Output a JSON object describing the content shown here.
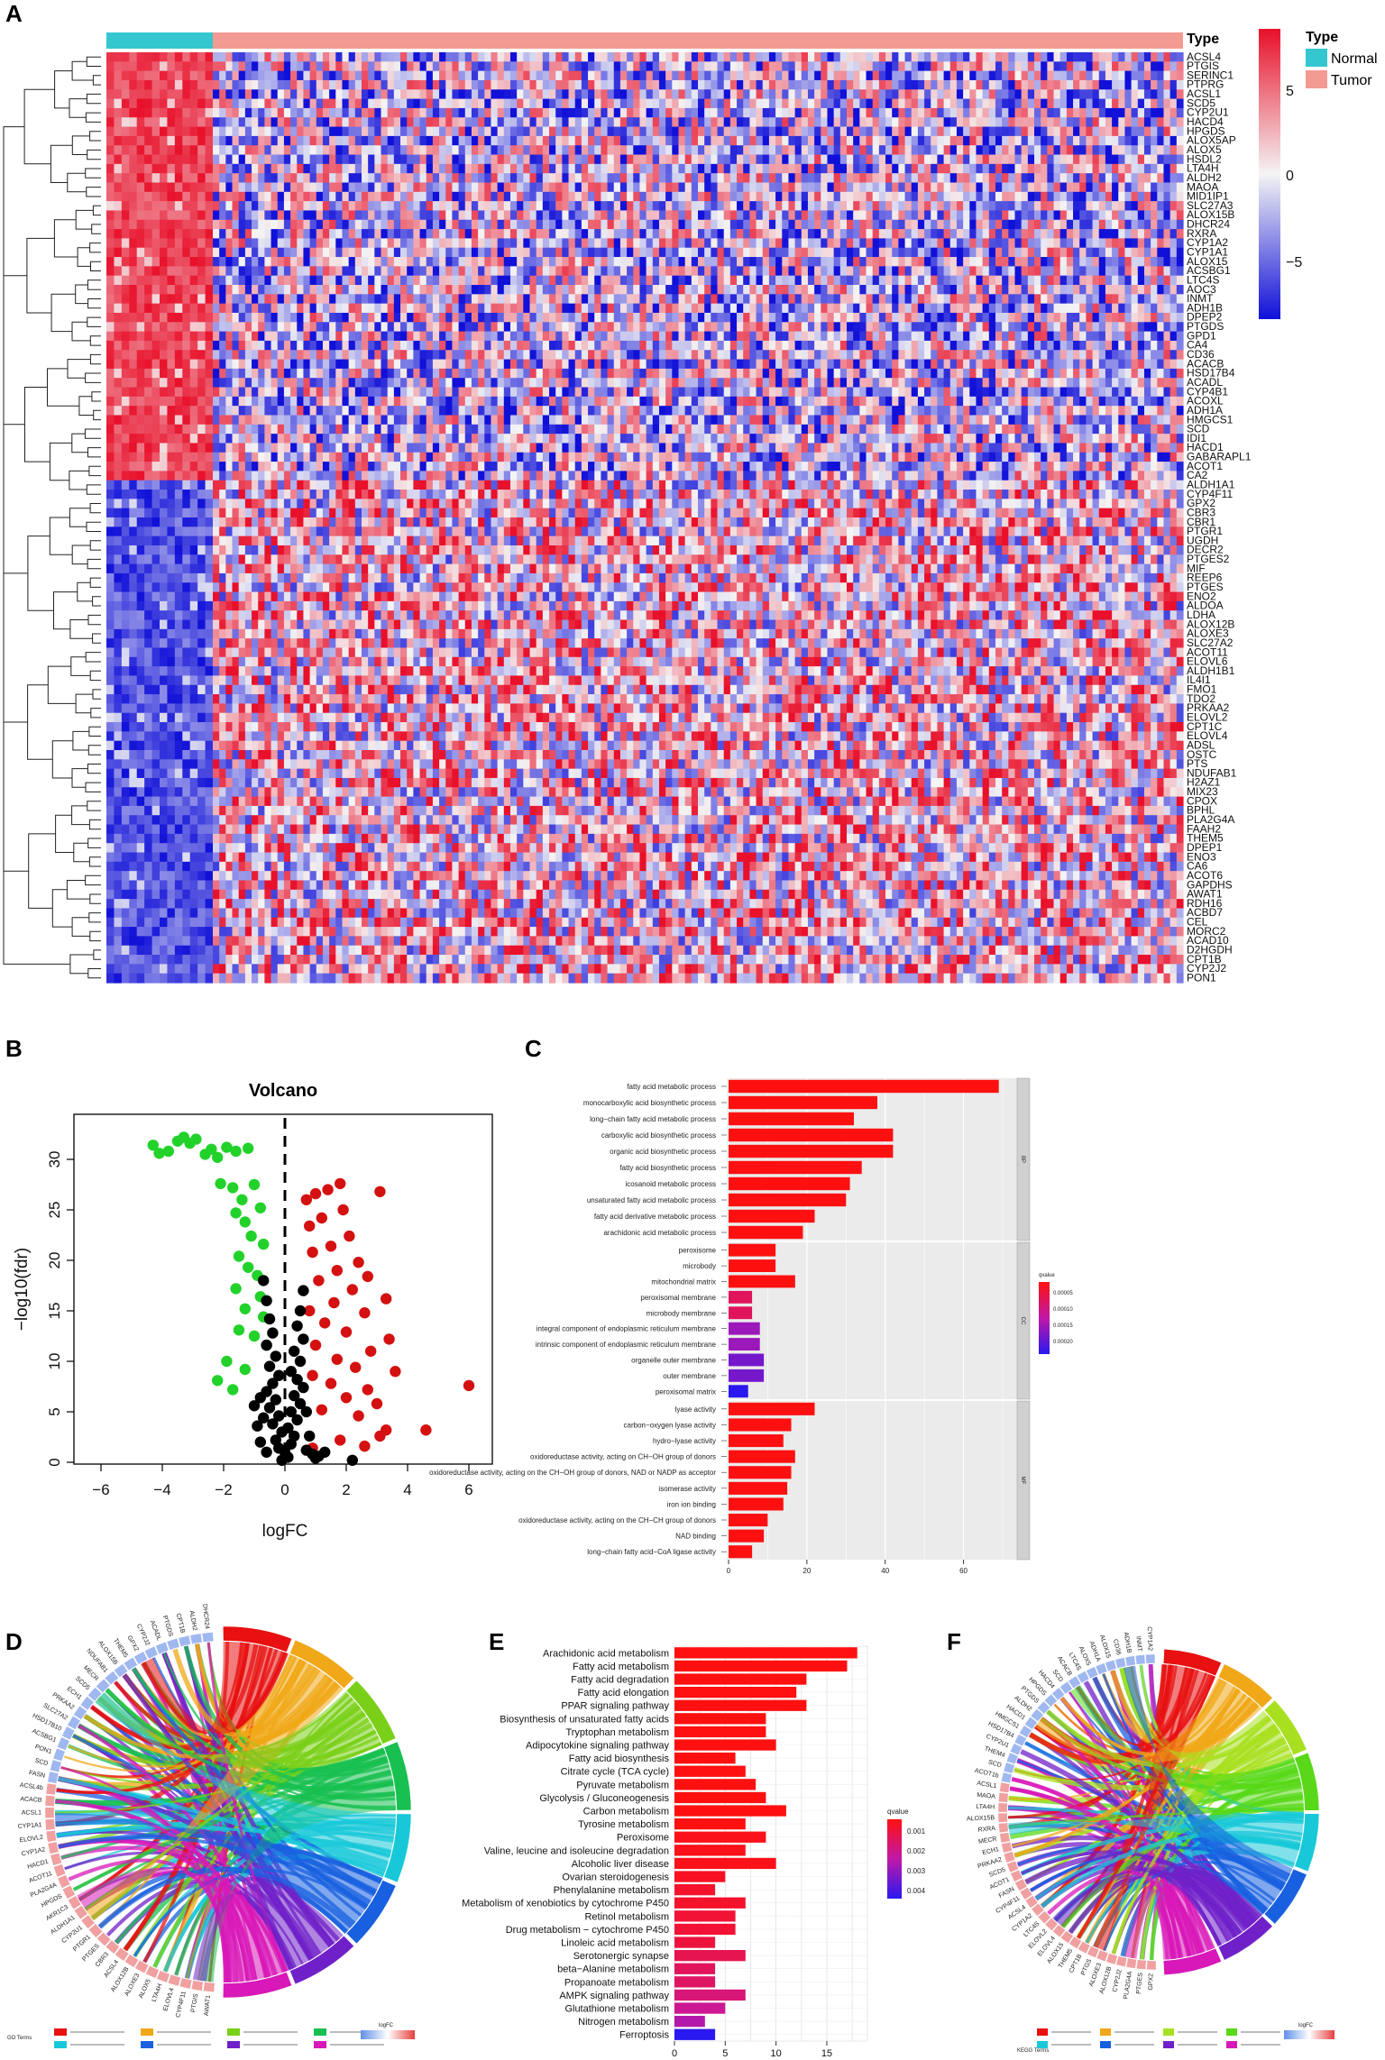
{
  "panels": {
    "a": "A",
    "b": "B",
    "c": "C",
    "d": "D",
    "e": "E",
    "f": "F"
  },
  "heatmap": {
    "type_header": "Type",
    "legend_title": "Type",
    "legend_items": [
      {
        "label": "Normal",
        "color": "#35c7cf"
      },
      {
        "label": "Tumor",
        "color": "#f39a92"
      }
    ],
    "scale_ticks": [
      "5",
      "0",
      "−5"
    ],
    "colors": {
      "high": "#e8102a",
      "mid": "#f4f4f4",
      "low": "#1010d8"
    },
    "genes": [
      "ACSL4",
      "PTGIS",
      "SERINC1",
      "PTPRG",
      "ACSL1",
      "SCD5",
      "CYP2U1",
      "HACD4",
      "HPGDS",
      "ALOX5AP",
      "ALOX5",
      "HSDL2",
      "LTA4H",
      "ALDH2",
      "MAOA",
      "MID1IP1",
      "SLC27A3",
      "ALOX15B",
      "DHCR24",
      "RXRA",
      "CYP1A2",
      "CYP1A1",
      "ALOX15",
      "ACSBG1",
      "LTC4S",
      "AOC3",
      "INMT",
      "ADH1B",
      "DPEP2",
      "PTGDS",
      "GPD1",
      "CA4",
      "CD36",
      "ACACB",
      "HSD17B4",
      "ACADL",
      "CYP4B1",
      "ACOXL",
      "ADH1A",
      "HMGCS1",
      "SCD",
      "IDI1",
      "HACD1",
      "GABARAPL1",
      "ACOT1",
      "CA2",
      "ALDH1A1",
      "CYP4F11",
      "GPX2",
      "CBR3",
      "CBR1",
      "PTGR1",
      "UGDH",
      "DECR2",
      "PTGES2",
      "MIF",
      "REEP6",
      "PTGES",
      "ENO2",
      "ALDOA",
      "LDHA",
      "ALOX12B",
      "ALOXE3",
      "SLC27A2",
      "ACOT11",
      "ELOVL6",
      "ALDH1B1",
      "IL4I1",
      "FMO1",
      "TDO2",
      "PRKAA2",
      "ELOVL2",
      "CPT1C",
      "ELOVL4",
      "ADSL",
      "OSTC",
      "PTS",
      "NDUFAB1",
      "H2AZ1",
      "MIX23",
      "CPOX",
      "BPHL",
      "PLA2G4A",
      "FAAH2",
      "THEM5",
      "DPEP1",
      "ENO3",
      "CA6",
      "ACOT6",
      "GAPDHS",
      "AWAT1",
      "RDH16",
      "ACBD7",
      "CEL",
      "MORC2",
      "ACAD10",
      "D2HGDH",
      "CPT1B",
      "CYP2J2",
      "PON1"
    ]
  },
  "volcano": {
    "chart_data": {
      "type": "scatter",
      "title": "Volcano",
      "xlabel": "logFC",
      "ylabel": "−log10(fdr)",
      "xlim": [
        -7,
        7
      ],
      "ylim": [
        0,
        33
      ],
      "xticks": [
        "−6",
        "−4",
        "−2",
        "0",
        "2",
        "4",
        "6"
      ],
      "yticks": [
        "0",
        "5",
        "10",
        "15",
        "20",
        "25",
        "30"
      ],
      "colors": {
        "down": "#22d22a",
        "ns": "#000000",
        "up": "#d41010"
      },
      "series": [
        {
          "name": "down",
          "points": [
            [
              -4.3,
              31.4
            ],
            [
              -4.1,
              30.6
            ],
            [
              -3.8,
              30.8
            ],
            [
              -3.5,
              31.8
            ],
            [
              -3.3,
              32.2
            ],
            [
              -3.1,
              31.6
            ],
            [
              -2.9,
              32.0
            ],
            [
              -2.6,
              30.5
            ],
            [
              -2.4,
              31.0
            ],
            [
              -2.2,
              30.2
            ],
            [
              -1.9,
              31.2
            ],
            [
              -1.6,
              30.8
            ],
            [
              -1.2,
              31.1
            ],
            [
              -2.1,
              27.6
            ],
            [
              -1.7,
              27.2
            ],
            [
              -1.4,
              26.0
            ],
            [
              -1.0,
              27.5
            ],
            [
              -1.6,
              24.7
            ],
            [
              -1.3,
              23.8
            ],
            [
              -0.8,
              25.2
            ],
            [
              -1.1,
              22.4
            ],
            [
              -0.7,
              21.6
            ],
            [
              -1.5,
              20.4
            ],
            [
              -1.2,
              19.3
            ],
            [
              -0.9,
              18.5
            ],
            [
              -1.6,
              17.2
            ],
            [
              -0.8,
              16.4
            ],
            [
              -1.3,
              15.2
            ],
            [
              -0.7,
              14.4
            ],
            [
              -1.5,
              13.1
            ],
            [
              -1.0,
              12.5
            ],
            [
              -0.6,
              11.6
            ],
            [
              -1.9,
              10.0
            ],
            [
              -1.3,
              9.2
            ],
            [
              -2.2,
              8.1
            ],
            [
              -1.7,
              7.2
            ]
          ]
        },
        {
          "name": "up",
          "points": [
            [
              1.8,
              27.6
            ],
            [
              1.4,
              27.0
            ],
            [
              1.0,
              26.6
            ],
            [
              0.7,
              26.0
            ],
            [
              3.1,
              26.8
            ],
            [
              1.9,
              25.0
            ],
            [
              1.2,
              24.2
            ],
            [
              0.8,
              23.4
            ],
            [
              2.1,
              22.4
            ],
            [
              1.5,
              21.4
            ],
            [
              0.9,
              20.8
            ],
            [
              2.4,
              19.8
            ],
            [
              1.7,
              19.0
            ],
            [
              2.7,
              18.4
            ],
            [
              1.1,
              18.0
            ],
            [
              2.2,
              17.1
            ],
            [
              3.3,
              16.2
            ],
            [
              1.6,
              15.8
            ],
            [
              0.8,
              15.0
            ],
            [
              2.6,
              14.8
            ],
            [
              1.3,
              13.8
            ],
            [
              2.0,
              12.9
            ],
            [
              3.4,
              12.2
            ],
            [
              1.0,
              11.6
            ],
            [
              2.8,
              11.0
            ],
            [
              1.7,
              10.2
            ],
            [
              2.3,
              9.4
            ],
            [
              3.6,
              9.0
            ],
            [
              0.9,
              8.6
            ],
            [
              1.5,
              7.8
            ],
            [
              2.7,
              7.2
            ],
            [
              6.0,
              7.6
            ],
            [
              2.0,
              6.4
            ],
            [
              3.0,
              5.8
            ],
            [
              1.2,
              5.2
            ],
            [
              2.4,
              4.6
            ],
            [
              3.3,
              3.2
            ],
            [
              4.6,
              3.2
            ],
            [
              3.1,
              2.6
            ],
            [
              1.8,
              2.2
            ],
            [
              0.9,
              1.4
            ],
            [
              2.6,
              1.6
            ]
          ]
        },
        {
          "name": "ns",
          "points": [
            [
              -0.1,
              0.2
            ],
            [
              0.1,
              0.5
            ],
            [
              0.0,
              1.0
            ],
            [
              -0.2,
              1.4
            ],
            [
              0.2,
              1.8
            ],
            [
              -0.3,
              2.2
            ],
            [
              0.3,
              2.6
            ],
            [
              -0.1,
              3.0
            ],
            [
              0.1,
              3.4
            ],
            [
              -0.4,
              3.8
            ],
            [
              0.4,
              4.2
            ],
            [
              -0.2,
              4.6
            ],
            [
              0.2,
              5.0
            ],
            [
              -0.5,
              5.4
            ],
            [
              0.5,
              5.8
            ],
            [
              -0.3,
              6.2
            ],
            [
              0.3,
              6.6
            ],
            [
              -0.6,
              7.0
            ],
            [
              0.6,
              7.4
            ],
            [
              -0.4,
              7.8
            ],
            [
              0.4,
              8.2
            ],
            [
              -0.2,
              8.6
            ],
            [
              0.2,
              9.0
            ],
            [
              -0.5,
              9.5
            ],
            [
              0.5,
              10.0
            ],
            [
              -0.3,
              10.5
            ],
            [
              0.3,
              11.0
            ],
            [
              -0.6,
              11.6
            ],
            [
              0.6,
              12.2
            ],
            [
              -0.4,
              12.8
            ],
            [
              0.4,
              13.5
            ],
            [
              -0.5,
              14.2
            ],
            [
              0.5,
              15.0
            ],
            [
              -0.6,
              16.0
            ],
            [
              0.6,
              17.0
            ],
            [
              -0.7,
              18.0
            ],
            [
              -0.6,
              1.0
            ],
            [
              0.7,
              1.2
            ],
            [
              -0.8,
              2.0
            ],
            [
              0.8,
              2.6
            ],
            [
              -0.9,
              3.6
            ],
            [
              0.9,
              0.8
            ],
            [
              1.0,
              0.4
            ],
            [
              1.1,
              0.6
            ],
            [
              1.3,
              1.0
            ],
            [
              2.2,
              0.2
            ],
            [
              -0.7,
              4.4
            ],
            [
              0.7,
              5.0
            ],
            [
              -1.0,
              5.6
            ],
            [
              -0.8,
              6.4
            ]
          ]
        }
      ]
    }
  },
  "go_bar": {
    "chart_data": {
      "type": "bar",
      "orientation": "horizontal",
      "xlim": [
        0,
        70
      ],
      "xticks": [
        "0",
        "20",
        "40",
        "60"
      ],
      "legend_title": "qvalue",
      "legend_ticks": [
        "0.00005",
        "0.00010",
        "0.00015",
        "0.00020"
      ],
      "groups": [
        {
          "name": "BP",
          "categories": [
            "fatty acid metabolic process",
            "monocarboxylic acid biosynthetic process",
            "long−chain fatty acid metabolic process",
            "carboxylic acid biosynthetic process",
            "organic acid biosynthetic process",
            "fatty acid biosynthetic process",
            "icosanoid metabolic process",
            "unsaturated fatty acid metabolic process",
            "fatty acid derivative metabolic process",
            "arachidonic acid metabolic process"
          ],
          "values": [
            69,
            38,
            32,
            42,
            42,
            34,
            31,
            30,
            22,
            19
          ],
          "qvalues": [
            1e-06,
            1e-06,
            1e-06,
            1e-06,
            1e-06,
            1e-06,
            1e-06,
            1e-06,
            1e-06,
            1e-06
          ]
        },
        {
          "name": "CC",
          "categories": [
            "peroxisome",
            "microbody",
            "mitochondrial matrix",
            "peroxisomal membrane",
            "microbody membrane",
            "integral component of endoplasmic reticulum membrane",
            "intrinsic component of endoplasmic reticulum membrane",
            "organelle outer membrane",
            "outer membrane",
            "peroxisomal matrix"
          ],
          "values": [
            12,
            12,
            17,
            6,
            6,
            8,
            8,
            9,
            9,
            5
          ],
          "qvalues": [
            1e-06,
            1e-06,
            1e-06,
            6e-05,
            6e-05,
            0.00015,
            0.00015,
            0.00018,
            0.00018,
            0.00024
          ]
        },
        {
          "name": "MF",
          "categories": [
            "lyase activity",
            "carbon−oxygen lyase activity",
            "hydro−lyase activity",
            "oxidoreductase activity, acting on CH−OH group of donors",
            "oxidoreductase activity, acting on the CH−OH group of donors, NAD or NADP as acceptor",
            "isomerase activity",
            "iron ion binding",
            "oxidoreductase activity, acting on the CH−CH group of donors",
            "NAD binding",
            "long−chain fatty acid−CoA ligase activity"
          ],
          "values": [
            22,
            16,
            14,
            17,
            16,
            15,
            14,
            10,
            9,
            6
          ],
          "qvalues": [
            1e-06,
            1e-06,
            1e-06,
            1e-06,
            1e-06,
            1e-06,
            1e-06,
            1e-06,
            1e-06,
            1e-06
          ]
        }
      ]
    }
  },
  "go_chord": {
    "genes": [
      "AWAT1",
      "PTGIS",
      "CYP4F11",
      "ELOVL4",
      "LTA4H",
      "ALOX5",
      "ALOXE3",
      "ALOX12B",
      "ACSL4",
      "CBR3",
      "PTGES",
      "PTGR1",
      "CYP2U1",
      "ALDH1A1",
      "AKR1C3",
      "HPGDS",
      "PLA2G4A",
      "ACOT11",
      "HACD1",
      "CYP1A2",
      "ELOVL2",
      "CYP1A1",
      "ACSL1",
      "ACACB",
      "ACSL4b",
      "FASN",
      "SCD",
      "PON1",
      "ACSBG1",
      "HSD17B10",
      "SLC27A2",
      "PRKAA2",
      "ECH1",
      "SCD5",
      "MECR",
      "NDUFAB1",
      "ALOX15B",
      "THEM5",
      "GPX2",
      "CYP2J2",
      "ACADL",
      "PTGDS",
      "CPT1B",
      "ALDH2",
      "DHCR24"
    ],
    "legend_title": "GO Terms",
    "logfc_title": "logFC",
    "term_colors": [
      "#e81010",
      "#f0a818",
      "#7ad018",
      "#18c050",
      "#18c8d8",
      "#1860e0",
      "#7020c8",
      "#d818b8"
    ]
  },
  "kegg_bar": {
    "chart_data": {
      "type": "bar",
      "orientation": "horizontal",
      "xlim": [
        0,
        19
      ],
      "xticks": [
        "0",
        "5",
        "10",
        "15"
      ],
      "legend_title": "qvalue",
      "legend_ticks": [
        "0.001",
        "0.002",
        "0.003",
        "0.004"
      ],
      "categories": [
        "Arachidonic acid metabolism",
        "Fatty acid metabolism",
        "Fatty acid degradation",
        "Fatty acid elongation",
        "PPAR signaling pathway",
        "Biosynthesis of unsaturated fatty acids",
        "Tryptophan metabolism",
        "Adipocytokine signaling pathway",
        "Fatty acid biosynthesis",
        "Citrate cycle (TCA cycle)",
        "Pyruvate metabolism",
        "Glycolysis / Gluconeogenesis",
        "Carbon metabolism",
        "Tyrosine metabolism",
        "Peroxisome",
        "Valine, leucine and isoleucine degradation",
        "Alcoholic liver disease",
        "Ovarian steroidogenesis",
        "Phenylalanine metabolism",
        "Metabolism of xenobiotics by cytochrome P450",
        "Retinol metabolism",
        "Drug metabolism − cytochrome P450",
        "Linoleic acid metabolism",
        "Serotonergic synapse",
        "beta−Alanine metabolism",
        "Propanoate metabolism",
        "AMPK signaling pathway",
        "Glutathione metabolism",
        "Nitrogen metabolism",
        "Ferroptosis"
      ],
      "values": [
        18,
        17,
        13,
        12,
        13,
        9,
        9,
        10,
        6,
        7,
        8,
        9,
        11,
        7,
        9,
        7,
        10,
        5,
        4,
        7,
        6,
        6,
        4,
        7,
        4,
        4,
        7,
        5,
        3,
        4
      ],
      "qvalues": [
        0.0001,
        0.0001,
        0.0001,
        0.0001,
        0.0001,
        0.0001,
        0.0001,
        0.0001,
        0.0001,
        0.0001,
        0.0001,
        0.0001,
        0.0001,
        0.0001,
        0.0002,
        0.0002,
        0.0002,
        0.0003,
        0.0004,
        0.0004,
        0.0005,
        0.0005,
        0.0006,
        0.0008,
        0.0009,
        0.001,
        0.0012,
        0.0015,
        0.002,
        0.0045
      ]
    }
  },
  "kegg_chord": {
    "genes": [
      "GPX2",
      "PTGES",
      "PLA2G4A",
      "CYP2J2",
      "ALOX12B",
      "ALOXE3",
      "PTGS",
      "CPT1B",
      "THEM5",
      "ALOX15",
      "ELOVL4",
      "ELOVL2",
      "LTC4S",
      "CYP1A2",
      "ACSL4",
      "CYP4F11",
      "FASN",
      "ACOT1",
      "SCD5",
      "PRKAA2",
      "ECH1",
      "MECR",
      "RXRA",
      "ALOX15B",
      "LTA4H",
      "MAOA",
      "ACSL1",
      "ACOT1b",
      "SCD",
      "THEM4",
      "CYP2U1",
      "HSD17B4",
      "HMGCS1",
      "HACD1",
      "ALDH2",
      "PTGDS",
      "HPGDS",
      "HACD4",
      "SCD",
      "ACACB",
      "LTC4S",
      "ALOX5",
      "ADH1A",
      "ALOX15",
      "CD36",
      "ADH1B",
      "INMT",
      "CYP1A2"
    ],
    "legend_title": "KEGG Terms",
    "logfc_title": "logFC",
    "term_colors": [
      "#e81010",
      "#f0a818",
      "#a8e020",
      "#58d818",
      "#18c8d8",
      "#1860e0",
      "#7020c8",
      "#d818b8"
    ]
  }
}
